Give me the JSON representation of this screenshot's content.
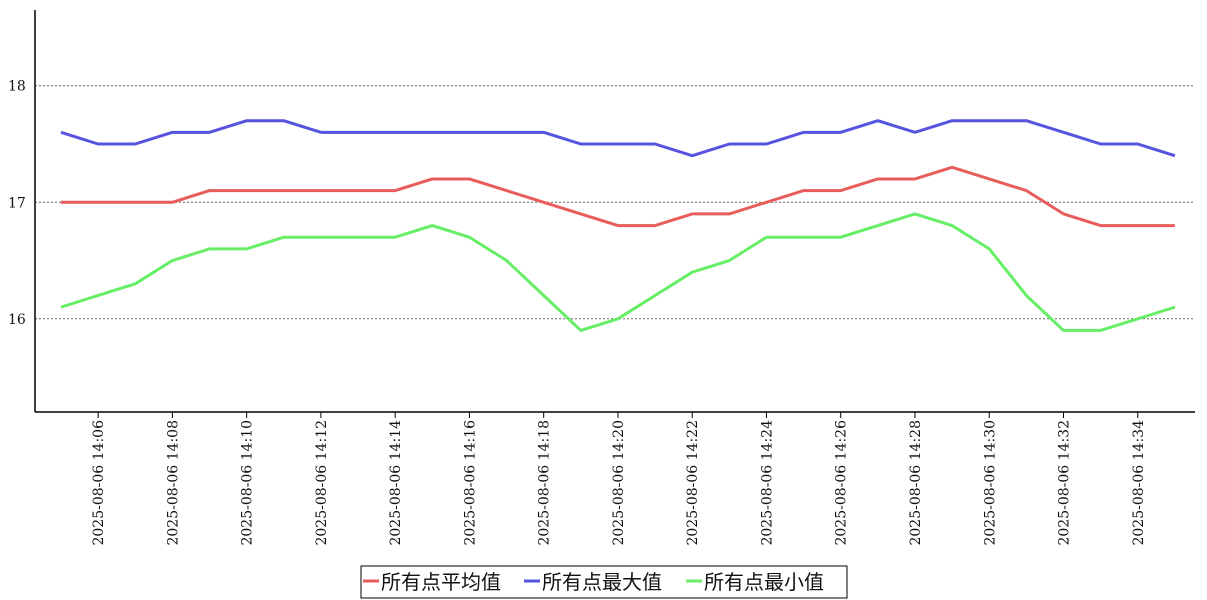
{
  "chart_data": {
    "type": "line",
    "x": [
      "2025-08-06 14:05",
      "2025-08-06 14:06",
      "2025-08-06 14:07",
      "2025-08-06 14:08",
      "2025-08-06 14:09",
      "2025-08-06 14:10",
      "2025-08-06 14:11",
      "2025-08-06 14:12",
      "2025-08-06 14:13",
      "2025-08-06 14:14",
      "2025-08-06 14:15",
      "2025-08-06 14:16",
      "2025-08-06 14:17",
      "2025-08-06 14:18",
      "2025-08-06 14:19",
      "2025-08-06 14:20",
      "2025-08-06 14:21",
      "2025-08-06 14:22",
      "2025-08-06 14:23",
      "2025-08-06 14:24",
      "2025-08-06 14:25",
      "2025-08-06 14:26",
      "2025-08-06 14:27",
      "2025-08-06 14:28",
      "2025-08-06 14:29",
      "2025-08-06 14:30",
      "2025-08-06 14:31",
      "2025-08-06 14:32",
      "2025-08-06 14:33",
      "2025-08-06 14:34",
      "2025-08-06 14:35"
    ],
    "x_tick_labels": [
      "2025-08-06 14:06",
      "2025-08-06 14:08",
      "2025-08-06 14:10",
      "2025-08-06 14:12",
      "2025-08-06 14:14",
      "2025-08-06 14:16",
      "2025-08-06 14:18",
      "2025-08-06 14:20",
      "2025-08-06 14:22",
      "2025-08-06 14:24",
      "2025-08-06 14:26",
      "2025-08-06 14:28",
      "2025-08-06 14:30",
      "2025-08-06 14:32",
      "2025-08-06 14:34"
    ],
    "y_ticks": [
      16,
      17,
      18
    ],
    "ylim": [
      15.2,
      18.65
    ],
    "grid": "horizontal dotted",
    "legend_position": "bottom-center",
    "series": [
      {
        "name": "所有点平均值",
        "color": "#e85c5c",
        "values": [
          17.0,
          17.0,
          17.0,
          17.0,
          17.1,
          17.1,
          17.1,
          17.1,
          17.1,
          17.1,
          17.2,
          17.2,
          17.1,
          17.0,
          16.9,
          16.8,
          16.8,
          16.9,
          16.9,
          17.0,
          17.1,
          17.1,
          17.2,
          17.2,
          17.3,
          17.2,
          17.1,
          16.9,
          16.8,
          16.8,
          16.8
        ]
      },
      {
        "name": "所有点最大值",
        "color": "#5454e0",
        "values": [
          17.6,
          17.5,
          17.5,
          17.6,
          17.6,
          17.7,
          17.7,
          17.6,
          17.6,
          17.6,
          17.6,
          17.6,
          17.6,
          17.6,
          17.5,
          17.5,
          17.5,
          17.4,
          17.5,
          17.5,
          17.6,
          17.6,
          17.7,
          17.6,
          17.7,
          17.7,
          17.7,
          17.6,
          17.5,
          17.5,
          17.4
        ]
      },
      {
        "name": "所有点最小值",
        "color": "#66ee66",
        "values": [
          16.1,
          16.2,
          16.3,
          16.5,
          16.6,
          16.6,
          16.7,
          16.7,
          16.7,
          16.7,
          16.8,
          16.7,
          16.5,
          16.2,
          15.9,
          16.0,
          16.2,
          16.4,
          16.5,
          16.7,
          16.7,
          16.7,
          16.8,
          16.9,
          16.8,
          16.6,
          16.2,
          15.9,
          15.9,
          16.0,
          16.1
        ]
      }
    ]
  }
}
